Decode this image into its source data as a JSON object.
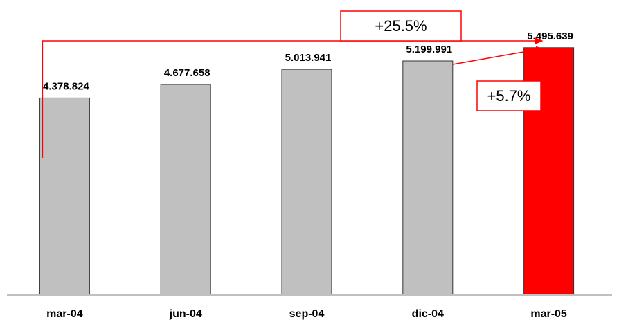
{
  "chart_data": {
    "type": "bar",
    "title": "",
    "xlabel": "",
    "ylabel": "",
    "categories": [
      "mar-04",
      "jun-04",
      "sep-04",
      "dic-04",
      "mar-05"
    ],
    "values": [
      4378824,
      4677658,
      5013941,
      5199991,
      5495639
    ],
    "value_labels": [
      "4.378.824",
      "4.677.658",
      "5.013.941",
      "5.199.991",
      "5.495.639"
    ],
    "bar_colors": [
      "#c0c0c0",
      "#c0c0c0",
      "#c0c0c0",
      "#c0c0c0",
      "#ff0000"
    ],
    "ylim": [
      0,
      5800000
    ],
    "grid": false,
    "legend": "none",
    "annotations": [
      {
        "text": "+25.5%",
        "from": "mar-04",
        "to": "mar-05",
        "color": "#ff0000"
      },
      {
        "text": "+5.7%",
        "from": "dic-04",
        "to": "mar-05",
        "color": "#ff0000"
      }
    ]
  },
  "colors": {
    "bar_default": "#c0c0c0",
    "bar_highlight": "#ff0000",
    "annotation": "#ff0000",
    "axis": "#c0c0c0",
    "bar_stroke": "#333333"
  }
}
